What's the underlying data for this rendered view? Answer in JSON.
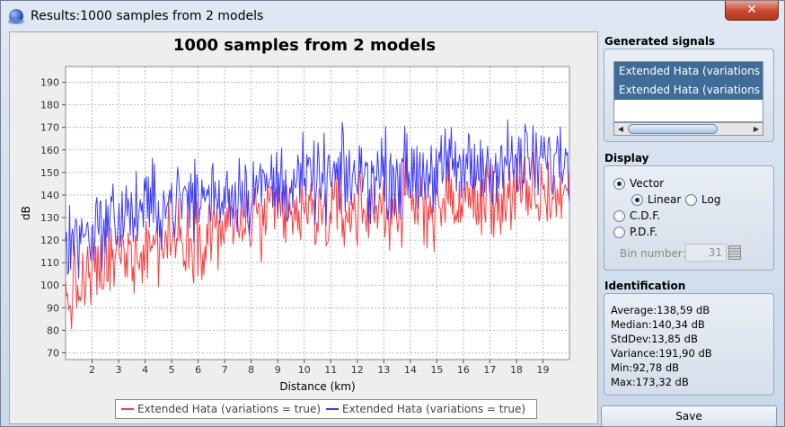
{
  "window": {
    "title": "Results:1000 samples from 2 models",
    "close_label": "✕"
  },
  "chart": {
    "title": "1000 samples from 2 models"
  },
  "chart_data": {
    "type": "line",
    "title": "1000 samples from 2 models",
    "xlabel": "Distance (km)",
    "ylabel": "dB",
    "xlim": [
      1.0,
      20.0
    ],
    "ylim": [
      67,
      197
    ],
    "x_ticks": [
      2,
      3,
      4,
      5,
      6,
      7,
      8,
      9,
      10,
      11,
      12,
      13,
      14,
      15,
      16,
      17,
      18,
      19
    ],
    "y_ticks": [
      70,
      80,
      90,
      100,
      110,
      120,
      130,
      140,
      150,
      160,
      170,
      180,
      190
    ],
    "grid": true,
    "legend_position": "bottom",
    "samples_per_series": 500,
    "series": [
      {
        "name": "Extended Hata (variations = true)",
        "color": "#ff3b3b",
        "x": [
          1,
          2,
          3,
          4,
          5,
          6,
          7,
          8,
          9,
          10,
          11,
          12,
          13,
          14,
          15,
          16,
          17,
          18,
          19,
          20
        ],
        "mean": [
          93,
          104,
          112,
          118,
          121,
          123,
          126,
          128,
          130,
          131,
          132,
          133,
          134,
          135,
          136,
          137,
          138,
          139,
          140,
          141
        ],
        "min_shown": 80,
        "max_shown": 160
      },
      {
        "name": "Extended Hata (variations = true)",
        "color": "#3c3cff",
        "x": [
          1,
          2,
          3,
          4,
          5,
          6,
          7,
          8,
          9,
          10,
          11,
          12,
          13,
          14,
          15,
          16,
          17,
          18,
          19,
          20
        ],
        "mean": [
          118,
          125,
          130,
          134,
          137,
          139,
          141,
          143,
          145,
          146,
          147,
          148,
          149,
          150,
          151,
          152,
          153,
          154,
          155,
          156
        ],
        "min_shown": 103,
        "max_shown": 183
      }
    ]
  },
  "signals": {
    "title": "Generated signals",
    "items": [
      "Extended Hata (variations = true)",
      "Extended Hata (variations = true)"
    ]
  },
  "display": {
    "title": "Display",
    "vector": "Vector",
    "linear": "Linear",
    "log": "Log",
    "cdf": "C.D.F.",
    "pdf": "P.D.F.",
    "bin_label": "Bin number:",
    "bin_value": "31",
    "selected_mode": "Vector",
    "selected_scale": "Linear"
  },
  "identification": {
    "title": "Identification",
    "lines": [
      "Average:138,59 dB",
      "Median:140,34 dB",
      "StdDev:13,85 dB",
      "Variance:191,90 dB",
      "Min:92,78 dB",
      "Max:173,32 dB"
    ]
  },
  "save_label": "Save"
}
